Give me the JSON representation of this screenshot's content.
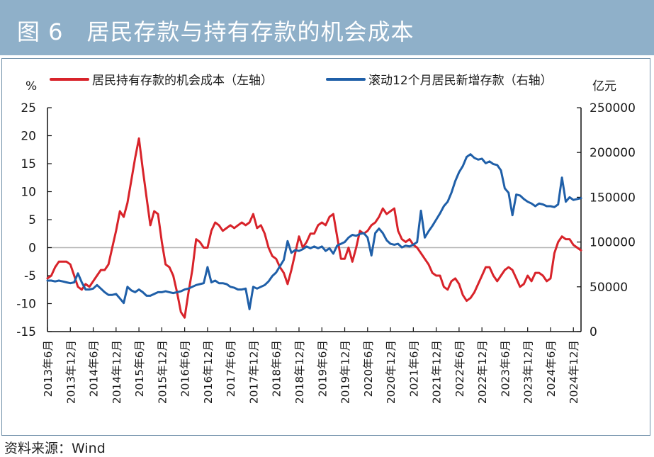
{
  "figure": {
    "title": "图 6　居民存款与持有存款的机会成本",
    "source": "资料来源：Wind"
  },
  "colors": {
    "title_bar": "#8fb0c9",
    "series_red": "#d8232a",
    "series_blue": "#1f5fa8",
    "zero_line": "#b5b5b5"
  },
  "chart_data": {
    "type": "line",
    "left_axis": {
      "unit": "%",
      "ylim": [
        -15,
        25
      ],
      "ticks": [
        -15,
        -10,
        -5,
        0,
        5,
        10,
        15,
        20,
        25
      ]
    },
    "right_axis": {
      "unit": "亿元",
      "ylim": [
        0,
        250000
      ],
      "ticks": [
        0,
        50000,
        100000,
        150000,
        200000,
        250000
      ]
    },
    "x_ticks": [
      "2013年6月",
      "2013年12月",
      "2014年6月",
      "2014年12月",
      "2015年6月",
      "2015年12月",
      "2016年6月",
      "2016年12月",
      "2017年6月",
      "2017年12月",
      "2018年6月",
      "2018年12月",
      "2019年6月",
      "2019年12月",
      "2020年6月",
      "2020年12月",
      "2021年6月",
      "2021年12月",
      "2022年6月",
      "2022年12月",
      "2023年6月",
      "2023年12月",
      "2024年6月",
      "2024年12月"
    ],
    "x_range": [
      "2013-06",
      "2025-02"
    ],
    "legend_position": "top",
    "series": [
      {
        "name": "居民持有存款的机会成本（左轴）",
        "axis": "left",
        "color": "#d8232a",
        "points": [
          [
            "2013-06",
            -5.5
          ],
          [
            "2013-07",
            -5
          ],
          [
            "2013-08",
            -3.5
          ],
          [
            "2013-09",
            -2.5
          ],
          [
            "2013-10",
            -2.5
          ],
          [
            "2013-11",
            -2.5
          ],
          [
            "2013-12",
            -3
          ],
          [
            "2014-01",
            -5
          ],
          [
            "2014-02",
            -7
          ],
          [
            "2014-03",
            -7.5
          ],
          [
            "2014-04",
            -6.5
          ],
          [
            "2014-05",
            -7
          ],
          [
            "2014-06",
            -6
          ],
          [
            "2014-07",
            -5
          ],
          [
            "2014-08",
            -4
          ],
          [
            "2014-09",
            -4
          ],
          [
            "2014-10",
            -3
          ],
          [
            "2014-11",
            0
          ],
          [
            "2014-12",
            3
          ],
          [
            "2015-01",
            6.5
          ],
          [
            "2015-02",
            5.5
          ],
          [
            "2015-03",
            8
          ],
          [
            "2015-04",
            12
          ],
          [
            "2015-05",
            16
          ],
          [
            "2015-06",
            19.5
          ],
          [
            "2015-07",
            14
          ],
          [
            "2015-08",
            9
          ],
          [
            "2015-09",
            4
          ],
          [
            "2015-10",
            6.5
          ],
          [
            "2015-11",
            6
          ],
          [
            "2015-12",
            1
          ],
          [
            "2016-01",
            -3
          ],
          [
            "2016-02",
            -3.5
          ],
          [
            "2016-03",
            -5
          ],
          [
            "2016-04",
            -8
          ],
          [
            "2016-05",
            -11.5
          ],
          [
            "2016-06",
            -12.5
          ],
          [
            "2016-07",
            -8
          ],
          [
            "2016-08",
            -4
          ],
          [
            "2016-09",
            1.5
          ],
          [
            "2016-10",
            1
          ],
          [
            "2016-11",
            0
          ],
          [
            "2016-12",
            0
          ],
          [
            "2017-01",
            3
          ],
          [
            "2017-02",
            4.5
          ],
          [
            "2017-03",
            4
          ],
          [
            "2017-04",
            3
          ],
          [
            "2017-05",
            3.5
          ],
          [
            "2017-06",
            4
          ],
          [
            "2017-07",
            3.5
          ],
          [
            "2017-08",
            4
          ],
          [
            "2017-09",
            4.5
          ],
          [
            "2017-10",
            4
          ],
          [
            "2017-11",
            4.5
          ],
          [
            "2017-12",
            6
          ],
          [
            "2017-13",
            3.5
          ],
          [
            "2018-01",
            3.5
          ],
          [
            "2018-02",
            4
          ],
          [
            "2018-03",
            2.5
          ],
          [
            "2018-04",
            0
          ],
          [
            "2018-05",
            -1.5
          ],
          [
            "2018-06",
            -2
          ],
          [
            "2018-07",
            -3.5
          ],
          [
            "2018-08",
            -4.5
          ],
          [
            "2018-09",
            -6.5
          ],
          [
            "2018-10",
            -4
          ],
          [
            "2018-11",
            -1
          ],
          [
            "2018-12",
            2
          ],
          [
            "2019-01",
            0
          ],
          [
            "2019-02",
            1
          ],
          [
            "2019-03",
            2.5
          ],
          [
            "2019-04",
            2.5
          ],
          [
            "2019-05",
            4
          ],
          [
            "2019-06",
            4.5
          ],
          [
            "2019-07",
            4
          ],
          [
            "2019-08",
            5.5
          ],
          [
            "2019-09",
            6
          ],
          [
            "2019-10",
            2
          ],
          [
            "2019-11",
            -2
          ],
          [
            "2019-12",
            -2
          ],
          [
            "2020-01",
            0
          ],
          [
            "2020-02",
            -2.5
          ],
          [
            "2020-03",
            0
          ],
          [
            "2020-04",
            3
          ],
          [
            "2020-05",
            2.5
          ],
          [
            "2020-06",
            3
          ],
          [
            "2020-07",
            4
          ],
          [
            "2020-08",
            4.5
          ],
          [
            "2020-09",
            5.5
          ],
          [
            "2020-10",
            7
          ],
          [
            "2020-11",
            6
          ],
          [
            "2020-12",
            6.5
          ],
          [
            "2021-01",
            7
          ],
          [
            "2021-02",
            3
          ],
          [
            "2021-03",
            1.5
          ],
          [
            "2021-04",
            1
          ],
          [
            "2021-05",
            1.5
          ],
          [
            "2021-06",
            0.5
          ],
          [
            "2021-07",
            0
          ],
          [
            "2021-08",
            -1
          ],
          [
            "2021-09",
            -2
          ],
          [
            "2021-10",
            -3
          ],
          [
            "2021-11",
            -4.5
          ],
          [
            "2021-12",
            -5
          ],
          [
            "2022-01",
            -5
          ],
          [
            "2022-02",
            -7
          ],
          [
            "2022-03",
            -7.5
          ],
          [
            "2022-04",
            -6
          ],
          [
            "2022-05",
            -5.5
          ],
          [
            "2022-06",
            -6.5
          ],
          [
            "2022-07",
            -8.5
          ],
          [
            "2022-08",
            -9.5
          ],
          [
            "2022-09",
            -9
          ],
          [
            "2022-10",
            -8
          ],
          [
            "2022-11",
            -6.5
          ],
          [
            "2022-12",
            -5
          ],
          [
            "2023-01",
            -3.5
          ],
          [
            "2023-02",
            -3.5
          ],
          [
            "2023-03",
            -5
          ],
          [
            "2023-04",
            -6
          ],
          [
            "2023-05",
            -5
          ],
          [
            "2023-06",
            -4
          ],
          [
            "2023-07",
            -3.5
          ],
          [
            "2023-08",
            -4
          ],
          [
            "2023-09",
            -5.5
          ],
          [
            "2023-10",
            -7
          ],
          [
            "2023-11",
            -6.5
          ],
          [
            "2023-12",
            -5
          ],
          [
            "2024-01",
            -6
          ],
          [
            "2024-02",
            -4.5
          ],
          [
            "2024-03",
            -4.5
          ],
          [
            "2024-04",
            -5
          ],
          [
            "2024-05",
            -6
          ],
          [
            "2024-06",
            -5.5
          ],
          [
            "2024-07",
            -1
          ],
          [
            "2024-08",
            1
          ],
          [
            "2024-09",
            2
          ],
          [
            "2024-10",
            1.5
          ],
          [
            "2024-11",
            1.5
          ],
          [
            "2024-12",
            0.5
          ],
          [
            "2025-01",
            0
          ],
          [
            "2025-02",
            -0.5
          ]
        ]
      },
      {
        "name": "滚动12个月居民新增存款（右轴）",
        "axis": "right",
        "color": "#1f5fa8",
        "points": [
          [
            "2013-06",
            57000
          ],
          [
            "2013-07",
            57000
          ],
          [
            "2013-08",
            56000
          ],
          [
            "2013-09",
            57000
          ],
          [
            "2013-10",
            56000
          ],
          [
            "2013-11",
            55000
          ],
          [
            "2013-12",
            54000
          ],
          [
            "2014-01",
            55000
          ],
          [
            "2014-02",
            65000
          ],
          [
            "2014-03",
            55000
          ],
          [
            "2014-04",
            47000
          ],
          [
            "2014-05",
            47000
          ],
          [
            "2014-06",
            48000
          ],
          [
            "2014-07",
            52000
          ],
          [
            "2014-08",
            48000
          ],
          [
            "2014-09",
            44000
          ],
          [
            "2014-10",
            41000
          ],
          [
            "2014-11",
            41000
          ],
          [
            "2014-12",
            42000
          ],
          [
            "2015-01",
            37000
          ],
          [
            "2015-02",
            32000
          ],
          [
            "2015-03",
            50000
          ],
          [
            "2015-04",
            46000
          ],
          [
            "2015-05",
            44000
          ],
          [
            "2015-06",
            47000
          ],
          [
            "2015-07",
            44000
          ],
          [
            "2015-08",
            40000
          ],
          [
            "2015-09",
            40000
          ],
          [
            "2015-10",
            42000
          ],
          [
            "2015-11",
            44000
          ],
          [
            "2015-12",
            44000
          ],
          [
            "2016-01",
            45000
          ],
          [
            "2016-02",
            44000
          ],
          [
            "2016-03",
            43000
          ],
          [
            "2016-04",
            44000
          ],
          [
            "2016-05",
            45000
          ],
          [
            "2016-06",
            47000
          ],
          [
            "2016-07",
            48000
          ],
          [
            "2016-08",
            50000
          ],
          [
            "2016-09",
            52000
          ],
          [
            "2016-10",
            53000
          ],
          [
            "2016-11",
            54000
          ],
          [
            "2016-12",
            72000
          ],
          [
            "2017-01",
            55000
          ],
          [
            "2017-02",
            57000
          ],
          [
            "2017-03",
            54000
          ],
          [
            "2017-04",
            54000
          ],
          [
            "2017-05",
            53000
          ],
          [
            "2017-06",
            50000
          ],
          [
            "2017-07",
            49000
          ],
          [
            "2017-08",
            47000
          ],
          [
            "2017-09",
            47000
          ],
          [
            "2017-10",
            48000
          ],
          [
            "2017-11",
            25000
          ],
          [
            "2017-12",
            50000
          ],
          [
            "2018-01",
            48000
          ],
          [
            "2018-02",
            50000
          ],
          [
            "2018-03",
            52000
          ],
          [
            "2018-04",
            56000
          ],
          [
            "2018-05",
            62000
          ],
          [
            "2018-06",
            66000
          ],
          [
            "2018-07",
            73000
          ],
          [
            "2018-08",
            80000
          ],
          [
            "2018-09",
            101000
          ],
          [
            "2018-10",
            88000
          ],
          [
            "2018-11",
            91000
          ],
          [
            "2018-12",
            90000
          ],
          [
            "2019-01",
            92000
          ],
          [
            "2019-02",
            95000
          ],
          [
            "2019-03",
            93000
          ],
          [
            "2019-04",
            95000
          ],
          [
            "2019-05",
            93000
          ],
          [
            "2019-06",
            95000
          ],
          [
            "2019-07",
            90000
          ],
          [
            "2019-08",
            93000
          ],
          [
            "2019-09",
            87000
          ],
          [
            "2019-10",
            96000
          ],
          [
            "2019-11",
            98000
          ],
          [
            "2019-12",
            100000
          ],
          [
            "2020-01",
            105000
          ],
          [
            "2020-02",
            108000
          ],
          [
            "2020-03",
            107000
          ],
          [
            "2020-04",
            109000
          ],
          [
            "2020-05",
            110000
          ],
          [
            "2020-06",
            105000
          ],
          [
            "2020-07",
            85000
          ],
          [
            "2020-08",
            110000
          ],
          [
            "2020-09",
            115000
          ],
          [
            "2020-10",
            110000
          ],
          [
            "2020-11",
            102000
          ],
          [
            "2020-12",
            98000
          ],
          [
            "2021-01",
            97000
          ],
          [
            "2021-02",
            98000
          ],
          [
            "2021-03",
            94000
          ],
          [
            "2021-04",
            96000
          ],
          [
            "2021-05",
            95000
          ],
          [
            "2021-06",
            97000
          ],
          [
            "2021-07",
            100000
          ],
          [
            "2021-08",
            135000
          ],
          [
            "2021-09",
            105000
          ],
          [
            "2021-10",
            112000
          ],
          [
            "2021-11",
            118000
          ],
          [
            "2021-12",
            125000
          ],
          [
            "2022-01",
            132000
          ],
          [
            "2022-02",
            140000
          ],
          [
            "2022-03",
            145000
          ],
          [
            "2022-04",
            155000
          ],
          [
            "2022-05",
            168000
          ],
          [
            "2022-06",
            178000
          ],
          [
            "2022-07",
            185000
          ],
          [
            "2022-08",
            195000
          ],
          [
            "2022-09",
            198000
          ],
          [
            "2022-10",
            194000
          ],
          [
            "2022-11",
            192000
          ],
          [
            "2022-12",
            193000
          ],
          [
            "2023-01",
            188000
          ],
          [
            "2023-02",
            190000
          ],
          [
            "2023-03",
            187000
          ],
          [
            "2023-04",
            186000
          ],
          [
            "2023-05",
            180000
          ],
          [
            "2023-06",
            160000
          ],
          [
            "2023-07",
            155000
          ],
          [
            "2023-08",
            130000
          ],
          [
            "2023-09",
            153000
          ],
          [
            "2023-10",
            152000
          ],
          [
            "2023-11",
            148000
          ],
          [
            "2023-12",
            145000
          ],
          [
            "2024-01",
            143000
          ],
          [
            "2024-02",
            140000
          ],
          [
            "2024-03",
            143000
          ],
          [
            "2024-04",
            142000
          ],
          [
            "2024-05",
            140000
          ],
          [
            "2024-06",
            140000
          ],
          [
            "2024-07",
            139000
          ],
          [
            "2024-08",
            142000
          ],
          [
            "2024-09",
            172000
          ],
          [
            "2024-10",
            145000
          ],
          [
            "2024-11",
            150000
          ],
          [
            "2024-12",
            147000
          ],
          [
            "2025-01",
            148000
          ],
          [
            "2025-02",
            149000
          ]
        ]
      }
    ]
  }
}
